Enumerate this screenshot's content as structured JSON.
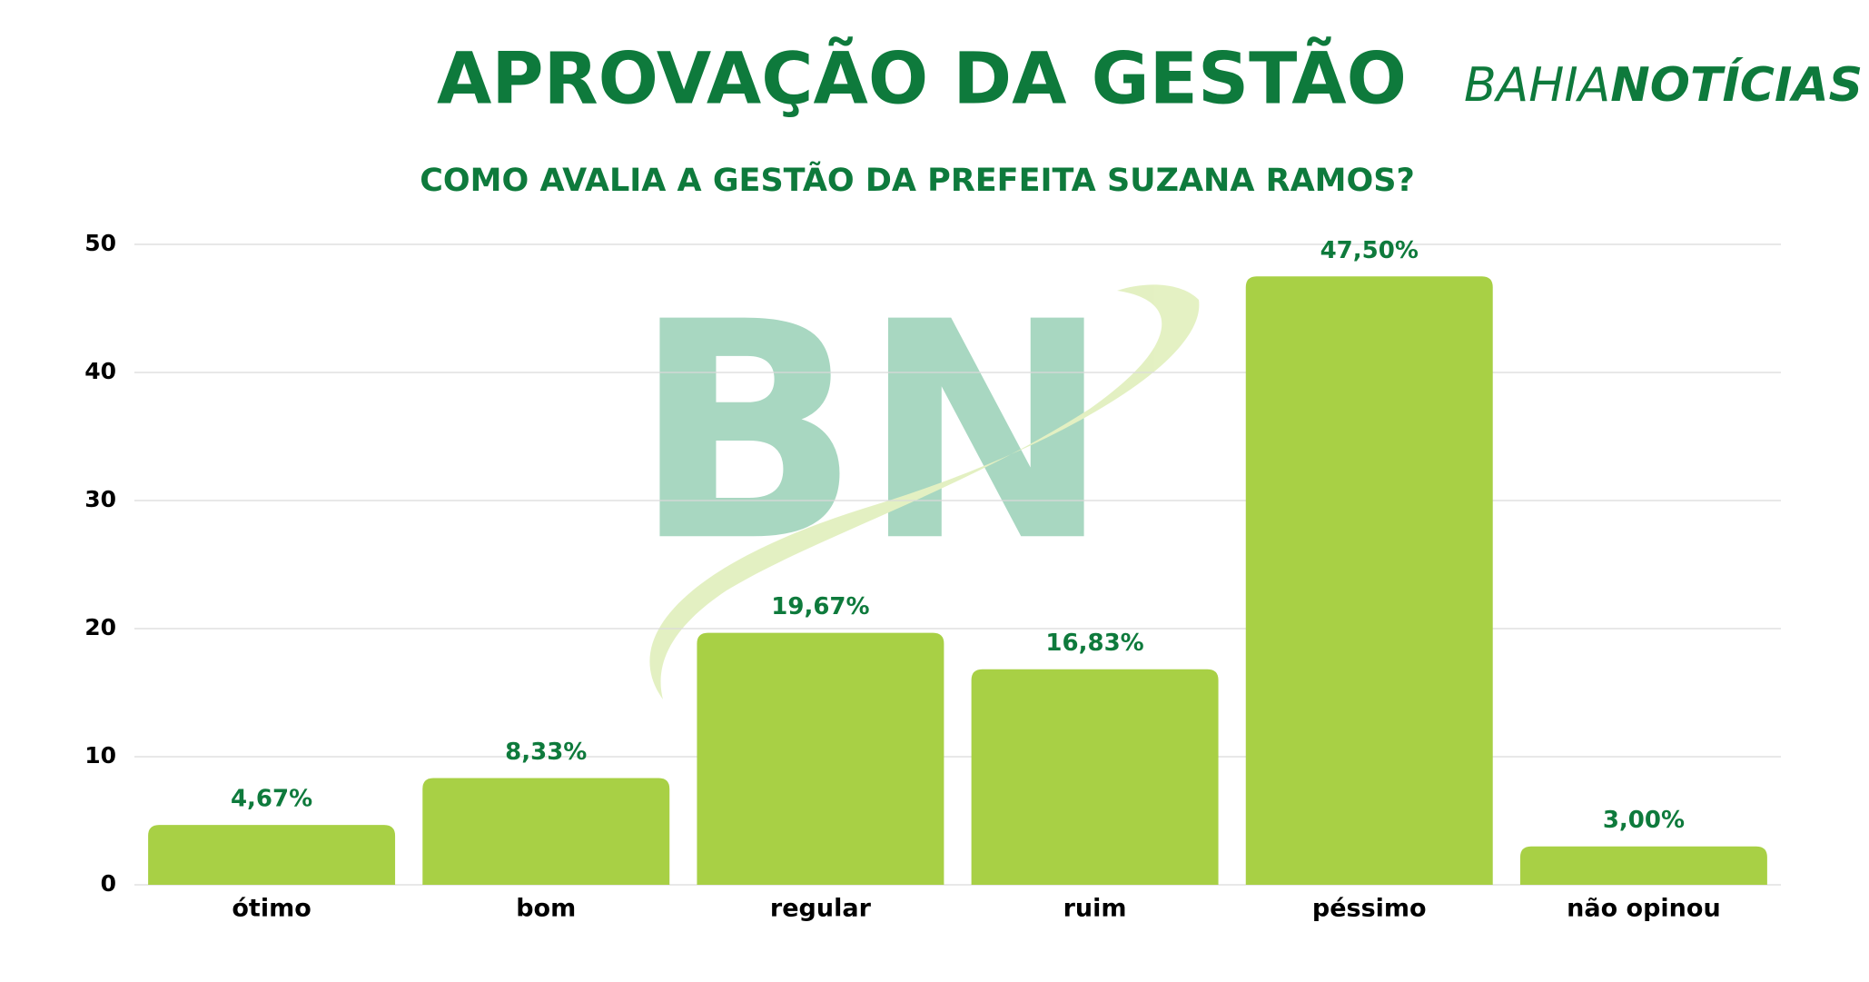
{
  "chart_data": {
    "type": "bar",
    "title": "APROVAÇÃO DA GESTÃO",
    "subtitle": "COMO AVALIA A GESTÃO DA PREFEITA SUZANA RAMOS?",
    "brand": {
      "light": "BAHIA",
      "bold": "NOTÍCIAS"
    },
    "watermark": "BN",
    "categories": [
      "ótimo",
      "bom",
      "regular",
      "ruim",
      "péssimo",
      "não opinou"
    ],
    "values": [
      4.67,
      8.33,
      19.67,
      16.83,
      47.5,
      3.0
    ],
    "value_labels": [
      "4,67%",
      "8,33%",
      "19,67%",
      "16,83%",
      "47,50%",
      "3,00%"
    ],
    "color": "#a8d045",
    "label_color": "#0e7a3c",
    "ylim": [
      0,
      50
    ],
    "yticks": [
      0,
      10,
      20,
      30,
      40,
      50
    ],
    "grid": true
  }
}
